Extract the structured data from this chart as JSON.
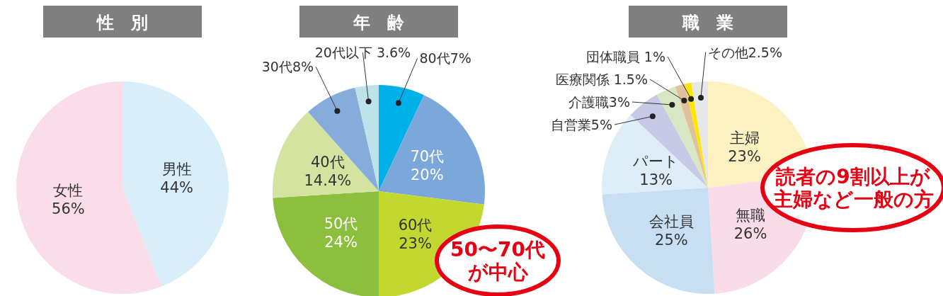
{
  "chart_data": [
    {
      "type": "pie",
      "title": "性　別",
      "categories": [
        "男性",
        "女性"
      ],
      "values": [
        44,
        56
      ],
      "value_labels": [
        "44%",
        "56%"
      ],
      "colors": [
        "#d8eefa",
        "#fbdde9"
      ]
    },
    {
      "type": "pie",
      "title": "年　齢",
      "categories": [
        "80代",
        "70代",
        "60代",
        "50代",
        "40代",
        "30代",
        "20代以下"
      ],
      "values": [
        7,
        20,
        23,
        24,
        14.4,
        8,
        3.6
      ],
      "value_labels": [
        "7%",
        "20%",
        "23%",
        "24%",
        "14.4%",
        "8%",
        "3.6%"
      ],
      "colors": [
        "#00b1e9",
        "#7ba7da",
        "#c3d82e",
        "#8dbf3e",
        "#d5e3a1",
        "#86acdc",
        "#bde2e9"
      ],
      "annotations": [
        "50〜70代",
        "が中心"
      ]
    },
    {
      "type": "pie",
      "title": "職　業",
      "categories": [
        "主婦",
        "無職",
        "会社員",
        "パート",
        "自営業",
        "介護職",
        "医療関係",
        "団体職員",
        "その他"
      ],
      "values": [
        23,
        26,
        25,
        13,
        5,
        3,
        1.5,
        1,
        2.5
      ],
      "value_labels": [
        "23%",
        "26%",
        "25%",
        "13%",
        "5%",
        "3%",
        "1.5%",
        "1%",
        "2.5%"
      ],
      "colors": [
        "#fdf0c1",
        "#fadbe8",
        "#c8def3",
        "#ddeef9",
        "#c8c9e6",
        "#d7e7c4",
        "#dfc29b",
        "#ffe600",
        "#e6e8e8"
      ],
      "annotations": [
        "読者の9割以上が",
        "主婦など一般の方"
      ]
    }
  ]
}
